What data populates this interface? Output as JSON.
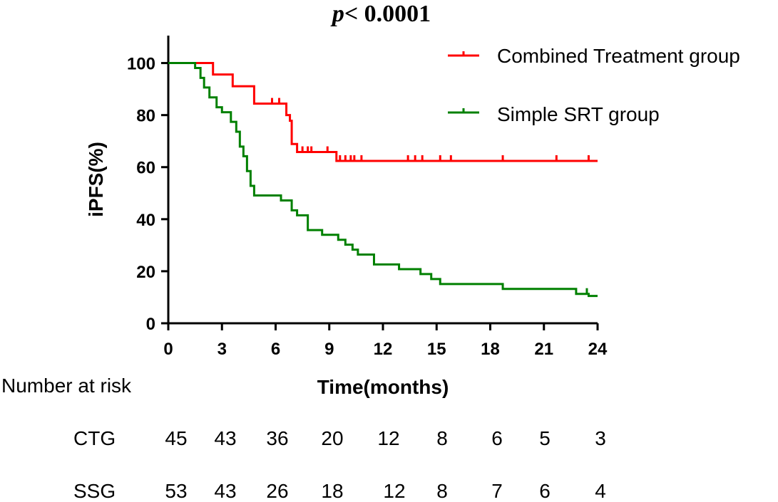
{
  "chart_data": {
    "type": "line",
    "subtype": "kaplan-meier",
    "title_p": "p",
    "title_rest": "< 0.0001",
    "xlabel": "Time(months)",
    "ylabel": "iPFS(%)",
    "xlim": [
      0,
      24
    ],
    "ylim": [
      0,
      110
    ],
    "xticks": [
      "0",
      "3",
      "6",
      "9",
      "12",
      "15",
      "18",
      "21",
      "24"
    ],
    "xtick_values": [
      0,
      3,
      6,
      9,
      12,
      15,
      18,
      21,
      24
    ],
    "yticks": [
      "0",
      "20",
      "40",
      "60",
      "80",
      "100"
    ],
    "ytick_values": [
      0,
      20,
      40,
      60,
      80,
      100
    ],
    "legend_position": "top-right",
    "series": [
      {
        "name": "Combined Treatment group",
        "color": "#ff0000",
        "steps": [
          [
            0,
            100
          ],
          [
            2.5,
            95.6
          ],
          [
            3.6,
            91.1
          ],
          [
            4.8,
            84.4
          ],
          [
            6.6,
            80.0
          ],
          [
            6.8,
            77.8
          ],
          [
            6.9,
            68.9
          ],
          [
            7.2,
            65.8
          ],
          [
            9.4,
            62.4
          ],
          [
            24,
            62.4
          ]
        ],
        "censors": [
          [
            5.8,
            84.4
          ],
          [
            6.2,
            84.4
          ],
          [
            7.5,
            65.8
          ],
          [
            7.8,
            65.8
          ],
          [
            8.0,
            65.8
          ],
          [
            8.9,
            65.8
          ],
          [
            9.6,
            62.4
          ],
          [
            9.9,
            62.4
          ],
          [
            10.2,
            62.4
          ],
          [
            10.4,
            62.4
          ],
          [
            10.8,
            62.4
          ],
          [
            13.4,
            62.4
          ],
          [
            13.8,
            62.4
          ],
          [
            14.2,
            62.4
          ],
          [
            15.2,
            62.4
          ],
          [
            15.8,
            62.4
          ],
          [
            18.7,
            62.4
          ],
          [
            21.7,
            62.4
          ],
          [
            23.5,
            62.4
          ]
        ]
      },
      {
        "name": "Simple SRT group",
        "color": "#008000",
        "steps": [
          [
            0,
            100
          ],
          [
            1.5,
            98.1
          ],
          [
            1.8,
            94.3
          ],
          [
            2.0,
            90.6
          ],
          [
            2.3,
            86.8
          ],
          [
            2.7,
            83.0
          ],
          [
            3.0,
            81.1
          ],
          [
            3.5,
            77.4
          ],
          [
            3.8,
            73.6
          ],
          [
            4.0,
            67.9
          ],
          [
            4.2,
            64.2
          ],
          [
            4.4,
            58.5
          ],
          [
            4.6,
            52.8
          ],
          [
            4.8,
            49.1
          ],
          [
            6.2,
            49.1
          ],
          [
            6.3,
            47.2
          ],
          [
            6.9,
            43.4
          ],
          [
            7.2,
            41.5
          ],
          [
            7.8,
            35.8
          ],
          [
            8.6,
            34.0
          ],
          [
            9.5,
            32.1
          ],
          [
            9.9,
            30.2
          ],
          [
            10.3,
            28.3
          ],
          [
            10.6,
            26.4
          ],
          [
            11.5,
            22.6
          ],
          [
            12.9,
            20.8
          ],
          [
            14.1,
            18.9
          ],
          [
            14.7,
            17.0
          ],
          [
            15.2,
            15.1
          ],
          [
            18.7,
            13.2
          ],
          [
            22.8,
            11.3
          ],
          [
            23.5,
            10.5
          ],
          [
            24,
            10.5
          ]
        ],
        "censors": [
          [
            23.4,
            11.3
          ]
        ]
      }
    ]
  },
  "risk_table": {
    "header": "Number at risk",
    "rows": [
      {
        "label": "CTG",
        "values": [
          "45",
          "43",
          "36",
          "20",
          "12",
          "8",
          "6",
          "5",
          "3"
        ]
      },
      {
        "label": "SSG",
        "values": [
          "53",
          "43",
          "26",
          "18",
          "12",
          "8",
          "7",
          "6",
          "4"
        ]
      }
    ]
  }
}
